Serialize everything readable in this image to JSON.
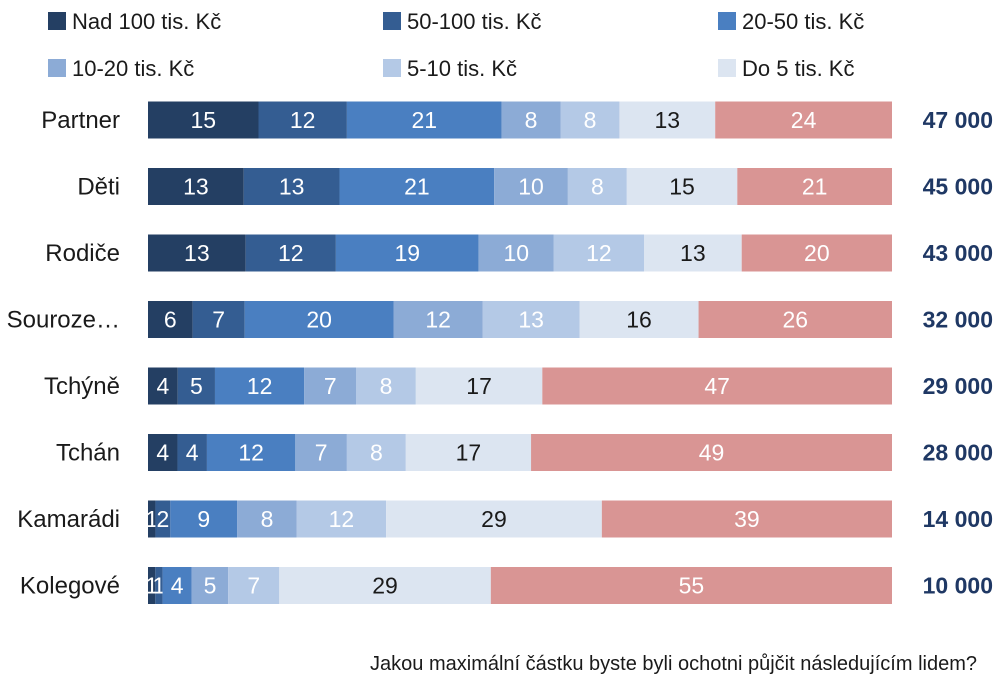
{
  "chart_data": {
    "type": "bar",
    "orientation": "horizontal",
    "stacked": true,
    "normalized": true,
    "categories": [
      "Partner",
      "Děti",
      "Rodiče",
      "Souroze…",
      "Tchýně",
      "Tchán",
      "Kamarádi",
      "Kolegové"
    ],
    "series": [
      {
        "name": "Nad 100 tis. Kč",
        "color": "#243f63",
        "label_color": "#ffffff",
        "values": [
          15,
          13,
          13,
          6,
          4,
          4,
          1,
          1
        ]
      },
      {
        "name": "50-100 tis. Kč",
        "color": "#345d92",
        "label_color": "#ffffff",
        "values": [
          12,
          13,
          12,
          7,
          5,
          4,
          2,
          1
        ]
      },
      {
        "name": "20-50 tis. Kč",
        "color": "#4a7fc1",
        "label_color": "#ffffff",
        "values": [
          21,
          21,
          19,
          20,
          12,
          12,
          9,
          4
        ]
      },
      {
        "name": "10-20 tis. Kč",
        "color": "#8cabd6",
        "label_color": "#ffffff",
        "values": [
          8,
          10,
          10,
          12,
          7,
          7,
          8,
          5
        ]
      },
      {
        "name": "5-10 tis. Kč",
        "color": "#b4c9e6",
        "label_color": "#ffffff",
        "values": [
          8,
          8,
          12,
          13,
          8,
          8,
          12,
          7
        ]
      },
      {
        "name": "Do 5 tis. Kč",
        "color": "#dce5f1",
        "label_color": "#1a1a1a",
        "values": [
          13,
          15,
          13,
          16,
          17,
          17,
          29,
          29
        ]
      },
      {
        "name": "",
        "color": "#d99594",
        "label_color": "#ffffff",
        "values": [
          24,
          21,
          20,
          26,
          47,
          49,
          39,
          55
        ]
      }
    ],
    "totals": [
      "47 000",
      "45 000",
      "43 000",
      "32 000",
      "29 000",
      "28 000",
      "14 000",
      "10 000"
    ],
    "legend_position": "top",
    "grid": false,
    "caption": "Jakou maximální částku byste byli ochotni půjčit následujícím lidem?"
  }
}
